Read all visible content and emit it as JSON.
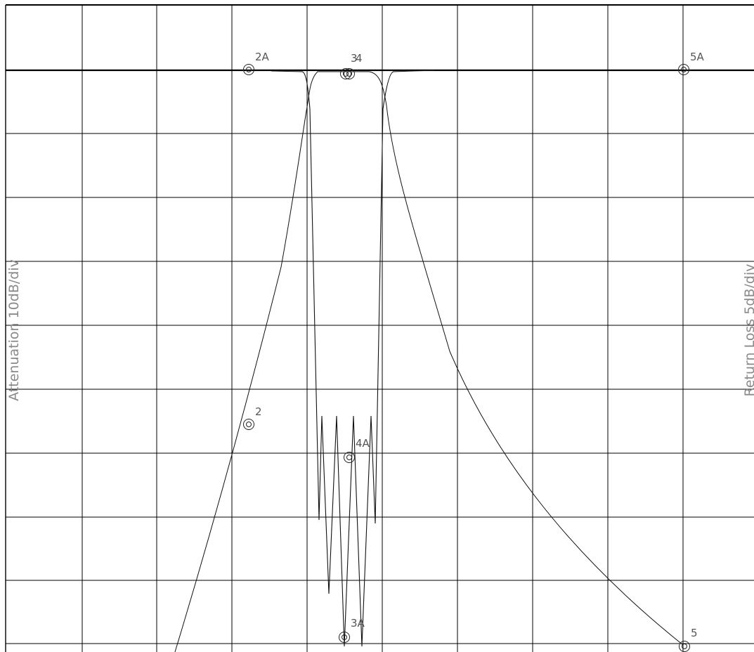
{
  "chart_data": {
    "type": "line",
    "title": "",
    "ylabel": "Attenuation 10dB/div",
    "y2label": "Return Loss 5dB/div",
    "grid": true,
    "x_divisions": 10,
    "y_divisions": 10,
    "series": [
      {
        "role": "attenuation"
      },
      {
        "role": "return-loss"
      }
    ],
    "markers": [
      {
        "label": "2A"
      },
      {
        "label": "3"
      },
      {
        "label": "4"
      },
      {
        "label": "5A"
      },
      {
        "label": "2"
      },
      {
        "label": "4A"
      },
      {
        "label": "3A"
      },
      {
        "label": "5"
      }
    ]
  }
}
